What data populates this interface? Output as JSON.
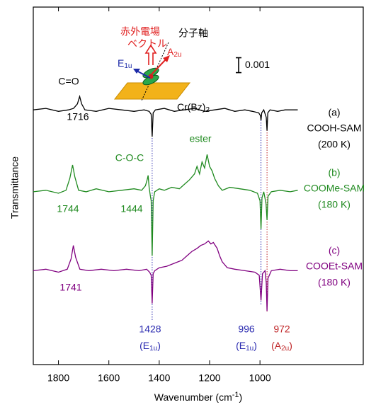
{
  "chart_data": {
    "type": "line",
    "x_label": {
      "main": "Wavenumber (cm",
      "sup": "-1",
      "close": ")"
    },
    "y_label": "Transmittance",
    "xlim": [
      1900,
      590
    ],
    "xticks": [
      1800,
      1600,
      1400,
      1200,
      1000
    ],
    "ylim": [
      0,
      0.024
    ],
    "scale_bar": 0.001,
    "series": [
      {
        "tag": "(a)",
        "name": "COOH-SAM",
        "condition": "(200 K)",
        "color": "#000000",
        "x": [
          1900,
          1850,
          1800,
          1760,
          1740,
          1725,
          1716,
          1708,
          1695,
          1650,
          1600,
          1550,
          1500,
          1460,
          1440,
          1432,
          1428,
          1424,
          1415,
          1380,
          1340,
          1300,
          1260,
          1220,
          1180,
          1140,
          1100,
          1060,
          1030,
          1005,
          998,
          996,
          993,
          985,
          975,
          972,
          969,
          960,
          930,
          900,
          850
        ],
        "values": [
          0.0171,
          0.0172,
          0.017,
          0.0171,
          0.0172,
          0.0175,
          0.018,
          0.0175,
          0.0171,
          0.017,
          0.0172,
          0.0171,
          0.017,
          0.0171,
          0.017,
          0.0168,
          0.0153,
          0.0169,
          0.0171,
          0.0172,
          0.017,
          0.0171,
          0.0172,
          0.017,
          0.0171,
          0.0172,
          0.017,
          0.0171,
          0.017,
          0.0169,
          0.0167,
          0.0164,
          0.0169,
          0.0171,
          0.0166,
          0.0157,
          0.0169,
          0.0171,
          0.017,
          0.0171,
          0.0171
        ]
      },
      {
        "tag": "(b)",
        "name": "COOMe-SAM",
        "condition": "(180 K)",
        "color": "#1f8a1f",
        "x": [
          1900,
          1850,
          1800,
          1770,
          1755,
          1744,
          1735,
          1720,
          1690,
          1650,
          1600,
          1550,
          1500,
          1470,
          1455,
          1448,
          1444,
          1440,
          1435,
          1432,
          1428,
          1424,
          1418,
          1400,
          1380,
          1350,
          1320,
          1300,
          1280,
          1260,
          1250,
          1240,
          1230,
          1220,
          1210,
          1200,
          1190,
          1180,
          1165,
          1150,
          1120,
          1080,
          1040,
          1010,
          1000,
          996,
          992,
          985,
          976,
          972,
          968,
          955,
          920,
          880,
          850
        ],
        "values": [
          0.0116,
          0.0117,
          0.0115,
          0.0117,
          0.0125,
          0.0134,
          0.0126,
          0.0117,
          0.0116,
          0.0118,
          0.0116,
          0.0117,
          0.0118,
          0.0117,
          0.012,
          0.0124,
          0.0127,
          0.0119,
          0.0113,
          0.011,
          0.0073,
          0.011,
          0.0116,
          0.0118,
          0.0117,
          0.0119,
          0.0118,
          0.0121,
          0.0124,
          0.0128,
          0.0133,
          0.0128,
          0.0136,
          0.0132,
          0.0141,
          0.0133,
          0.013,
          0.0125,
          0.012,
          0.0117,
          0.0119,
          0.0118,
          0.0117,
          0.0115,
          0.011,
          0.0091,
          0.0112,
          0.0116,
          0.0108,
          0.0097,
          0.0113,
          0.0116,
          0.0117,
          0.0116,
          0.0117
        ]
      },
      {
        "tag": "(c)",
        "name": "COOEt-SAM",
        "condition": "(180 K)",
        "color": "#800080",
        "x": [
          1900,
          1850,
          1800,
          1765,
          1750,
          1741,
          1732,
          1715,
          1680,
          1630,
          1580,
          1530,
          1480,
          1450,
          1438,
          1432,
          1428,
          1424,
          1418,
          1400,
          1370,
          1340,
          1310,
          1290,
          1270,
          1250,
          1235,
          1220,
          1205,
          1195,
          1185,
          1170,
          1160,
          1150,
          1130,
          1100,
          1060,
          1020,
          1003,
          996,
          990,
          980,
          975,
          972,
          968,
          955,
          920,
          880,
          850
        ],
        "values": [
          0.0063,
          0.0064,
          0.0062,
          0.0064,
          0.0071,
          0.008,
          0.0072,
          0.0064,
          0.0063,
          0.0064,
          0.0063,
          0.0064,
          0.0063,
          0.0064,
          0.0062,
          0.006,
          0.0041,
          0.0061,
          0.0063,
          0.0065,
          0.0066,
          0.0068,
          0.007,
          0.0073,
          0.0076,
          0.0078,
          0.008,
          0.0081,
          0.0083,
          0.0081,
          0.0082,
          0.0078,
          0.0073,
          0.0069,
          0.0065,
          0.0064,
          0.0063,
          0.0062,
          0.006,
          0.0043,
          0.0061,
          0.0063,
          0.0055,
          0.0036,
          0.0058,
          0.0063,
          0.0064,
          0.0063,
          0.0063
        ]
      }
    ],
    "ref_lines": [
      {
        "x": 1428,
        "color": "#2b2bb0"
      },
      {
        "x": 996,
        "color": "#2b2bb0"
      },
      {
        "x": 972,
        "color": "#c0282a"
      }
    ],
    "annotations": [
      {
        "text": "C=O",
        "color": "#000000"
      },
      {
        "text": "1716",
        "color": "#000000"
      },
      {
        "text": "C-O-C",
        "color": "#1f8a1f"
      },
      {
        "text": "ester",
        "color": "#1f8a1f"
      },
      {
        "text": "1744",
        "color": "#1f8a1f"
      },
      {
        "text": "1444",
        "color": "#1f8a1f"
      },
      {
        "text": "1741",
        "color": "#800080"
      },
      {
        "text": "1428",
        "color": "#2b2bb0"
      },
      {
        "open": "(E",
        "sub": "1u",
        "close": ")",
        "color": "#2b2bb0"
      },
      {
        "text": "996",
        "color": "#2b2bb0"
      },
      {
        "open": "(E",
        "sub": "1u",
        "close": ")",
        "color": "#2b2bb0"
      },
      {
        "text": "972",
        "color": "#c0282a"
      },
      {
        "open": "(A",
        "sub": "2u",
        "close": ")",
        "color": "#c0282a"
      }
    ]
  },
  "inset": {
    "field_label": [
      "赤外電場",
      "ベクトル"
    ],
    "axis_label": "分子軸",
    "e_mode": {
      "open": "E",
      "sub": "1u"
    },
    "a_mode": {
      "open": "A",
      "sub": "2u"
    },
    "molecule": {
      "open": "Cr(Bz)",
      "sub": "2"
    }
  }
}
